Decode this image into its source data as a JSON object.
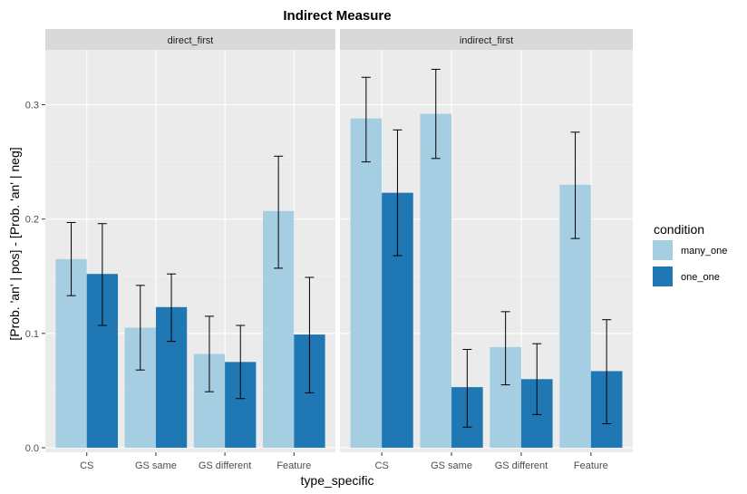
{
  "chart_data": {
    "type": "bar",
    "title": "Indirect Measure",
    "xlabel": "type_specific",
    "ylabel": "[Prob. 'an' | pos] - [Prob. 'an' | neg]",
    "ylim": [
      -0.004,
      0.348
    ],
    "yticks": [
      0.0,
      0.1,
      0.2,
      0.3
    ],
    "ytick_labels": [
      "0.0",
      "0.1",
      "0.2",
      "0.3"
    ],
    "categories": [
      "CS",
      "GS same",
      "GS different",
      "Feature"
    ],
    "grid": true,
    "legend": {
      "title": "condition",
      "position": "right",
      "entries": [
        {
          "name": "many_one",
          "color": "#a6cee3"
        },
        {
          "name": "one_one",
          "color": "#1f78b4"
        }
      ]
    },
    "facets": [
      {
        "label": "direct_first",
        "series": [
          {
            "name": "many_one",
            "values": [
              0.165,
              0.105,
              0.082,
              0.207
            ],
            "err_low": [
              0.133,
              0.068,
              0.049,
              0.157
            ],
            "err_high": [
              0.197,
              0.142,
              0.115,
              0.255
            ]
          },
          {
            "name": "one_one",
            "values": [
              0.152,
              0.123,
              0.075,
              0.099
            ],
            "err_low": [
              0.107,
              0.093,
              0.043,
              0.048
            ],
            "err_high": [
              0.196,
              0.152,
              0.107,
              0.149
            ]
          }
        ]
      },
      {
        "label": "indirect_first",
        "series": [
          {
            "name": "many_one",
            "values": [
              0.288,
              0.292,
              0.088,
              0.23
            ],
            "err_low": [
              0.25,
              0.253,
              0.055,
              0.183
            ],
            "err_high": [
              0.324,
              0.331,
              0.119,
              0.276
            ]
          },
          {
            "name": "one_one",
            "values": [
              0.223,
              0.053,
              0.06,
              0.067
            ],
            "err_low": [
              0.168,
              0.018,
              0.029,
              0.021
            ],
            "err_high": [
              0.278,
              0.086,
              0.091,
              0.112
            ]
          }
        ]
      }
    ]
  }
}
